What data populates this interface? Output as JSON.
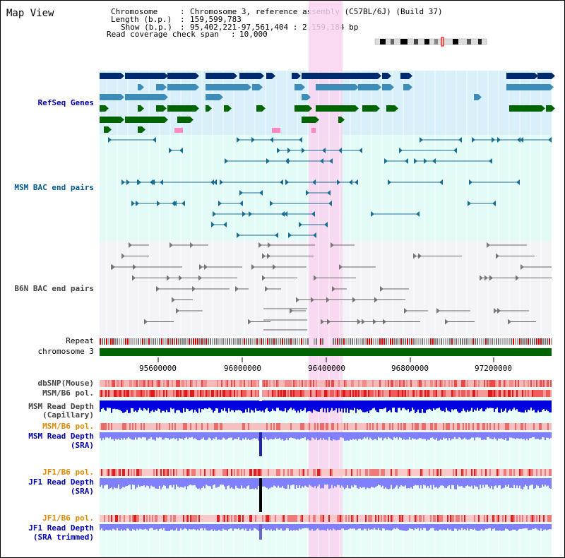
{
  "title": "Map View",
  "info": {
    "chromosome_label": "Chromosome",
    "chromosome_value": "Chromosome 3, reference assembly (C57BL/6J) (Build 37)",
    "length_label": "Length (b.p.)",
    "length_value": "159,599,783",
    "show_label": "Show (b.p.)",
    "show_value": "95,402,221-97,561,404 : 2,159,184 bp",
    "span_label": "Read coverage check span",
    "span_value": "10,000"
  },
  "tracks": {
    "refseq": "RefSeq Genes",
    "msm_bac": "MSM BAC end pairs",
    "b6n_bac": "B6N BAC end pairs",
    "repeat": "Repeat",
    "chromosome": "chromosome 3",
    "dbsnp": "dbSNP(Mouse)",
    "msm_b6_pol_1": "MSM/B6 pol.",
    "msm_depth_cap_1": "MSM Read Depth",
    "msm_depth_cap_2": "(Capillary)",
    "msm_b6_pol_2": "MSM/B6 pol.",
    "msm_depth_sra_1": "MSM Read Depth",
    "msm_depth_sra_2": "(SRA)",
    "jf1_b6_pol_1": "JF1/B6 pol.",
    "jf1_depth_sra_1": "JF1 Read Depth",
    "jf1_depth_sra_2": "(SRA)",
    "jf1_b6_pol_2": "JF1/B6 pol.",
    "jf1_depth_trim_1": "JF1 Read Depth",
    "jf1_depth_trim_2": "(SRA trimmed)"
  },
  "axis": {
    "ticks": [
      "95600000",
      "96000000",
      "96400000",
      "96800000",
      "97200000"
    ]
  },
  "colors": {
    "refseq_bg": "#d9f0fb",
    "msm_bac_bg": "#e3fbf6",
    "b6n_bg": "#f4f4f8",
    "highlight": "#f9d4f0",
    "chromosome_bar": "#006400",
    "refseq_dark": "#002a6e",
    "refseq_mid": "#3e8cb8",
    "refseq_green": "#006400",
    "msm_line": "#1a6e94",
    "b6n_line": "#666666",
    "depth_blue": "#0000e0",
    "depth_light": "#8080ff"
  }
}
